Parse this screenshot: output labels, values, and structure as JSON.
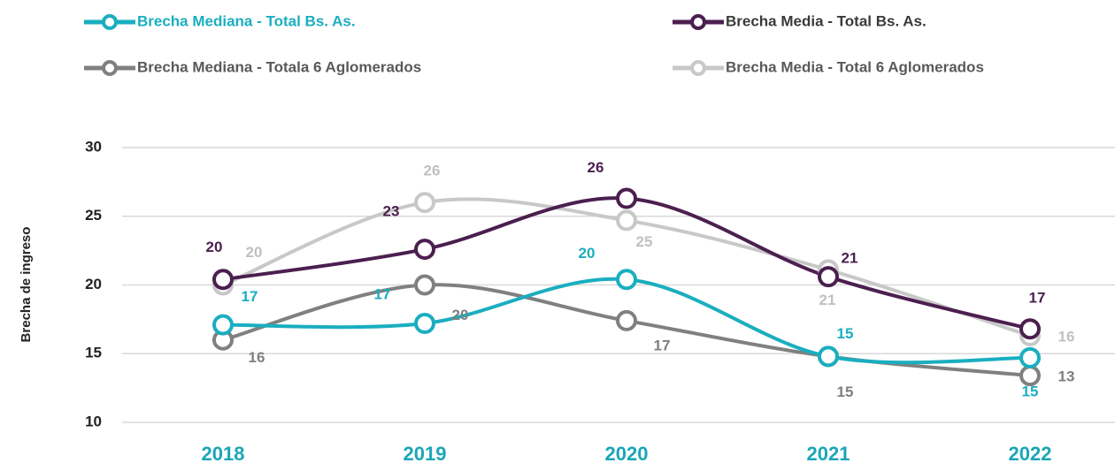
{
  "chart_data": {
    "type": "line",
    "y_label": "Brecha de ingreso",
    "categories": [
      "2018",
      "2019",
      "2020",
      "2021",
      "2022"
    ],
    "ylim": [
      10,
      30
    ],
    "yticks": [
      10,
      15,
      20,
      25,
      30
    ],
    "grid": true,
    "series": [
      {
        "name": "Brecha Mediana - Total Bs. As.",
        "color": "#1aaec0",
        "values": [
          17.1,
          17.2,
          20.4,
          14.8,
          14.7
        ],
        "value_labels": [
          "17",
          "17",
          "20",
          "15",
          "15"
        ]
      },
      {
        "name": "Brecha Media - Total Bs. As.",
        "color": "#4b1f4f",
        "values": [
          20.4,
          22.6,
          26.3,
          20.6,
          16.8
        ],
        "value_labels": [
          "20",
          "23",
          "26",
          "21",
          "17"
        ]
      },
      {
        "name": "Brecha Mediana - Totala 6 Aglomerados",
        "color": "#808080",
        "values": [
          16.0,
          20.0,
          17.4,
          14.8,
          13.4
        ],
        "value_labels": [
          "16",
          "20",
          "17",
          "15",
          "13"
        ]
      },
      {
        "name": "Brecha Media - Total 6 Aglomerados",
        "color": "#c8c8c8",
        "values": [
          20.0,
          26.0,
          24.7,
          21.1,
          16.3
        ],
        "value_labels": [
          "20",
          "26",
          "25",
          "21",
          "16"
        ]
      }
    ]
  }
}
